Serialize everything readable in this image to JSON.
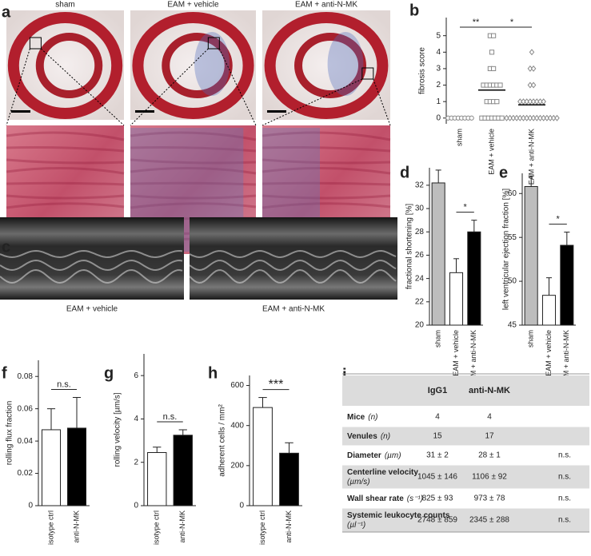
{
  "panel_labels": [
    "a",
    "b",
    "c",
    "d",
    "e",
    "f",
    "g",
    "h",
    "i"
  ],
  "histology": {
    "captions": [
      "sham",
      "EAM + vehicle",
      "EAM + anti-N-MK"
    ]
  },
  "echo": {
    "captions": [
      "EAM + vehicle",
      "EAM + anti-N-MK"
    ]
  },
  "chart_data": [
    {
      "type": "dotplot",
      "ylabel": "fibrosis score",
      "categories": [
        "sham",
        "EAM + vehicle",
        "EAM + anti-N-MK"
      ],
      "markers": [
        "circle",
        "square",
        "diamond"
      ],
      "color": "#888888",
      "groups": [
        [
          0,
          0,
          0,
          0,
          0,
          0,
          0,
          0
        ],
        [
          5,
          5,
          4,
          3,
          3,
          2,
          2,
          2,
          2,
          2,
          2,
          1,
          1,
          1,
          1,
          0,
          0,
          0,
          0,
          0,
          0,
          0
        ],
        [
          4,
          3,
          3,
          2,
          2,
          1,
          1,
          1,
          1,
          1,
          1,
          1,
          1,
          0,
          0,
          0,
          0,
          0,
          0,
          0,
          0,
          0,
          0,
          0,
          0,
          0,
          0,
          0,
          0
        ]
      ],
      "means": [
        null,
        1.7,
        0.8
      ],
      "ylim": [
        -0.35,
        6.1
      ],
      "yticks": [
        0,
        1,
        2,
        3,
        4,
        5
      ],
      "annotations": [
        {
          "text": "**"
        },
        {
          "text": "*"
        }
      ]
    },
    {
      "type": "bar",
      "ylabel": "fractional shortening [%]",
      "categories": [
        "sham",
        "EAM + vehicle",
        "EAM + anti-N-MK"
      ],
      "values": [
        32.2,
        24.5,
        28.0
      ],
      "errors": [
        1.1,
        1.2,
        1.0
      ],
      "colors": [
        "#bdbdbd",
        "#ffffff",
        "#000000"
      ],
      "ylim": [
        20,
        33.5
      ],
      "yticks": [
        20,
        22,
        24,
        26,
        28,
        30,
        32
      ],
      "annotations": [
        {
          "text": "*"
        }
      ]
    },
    {
      "type": "bar",
      "ylabel": "left ventricular ejection fraction [%]",
      "categories": [
        "sham",
        "EAM + vehicle",
        "EAM + anti-N-MK"
      ],
      "values": [
        60.8,
        48.4,
        54.1
      ],
      "errors": [
        1.2,
        2.0,
        1.5
      ],
      "colors": [
        "#bdbdbd",
        "#ffffff",
        "#000000"
      ],
      "ylim": [
        45,
        62.3
      ],
      "yticks": [
        45,
        50,
        55,
        60
      ],
      "annotations": [
        {
          "text": "*"
        }
      ]
    },
    {
      "type": "bar",
      "ylabel": "rolling flux fraction",
      "categories": [
        "isotype ctrl",
        "anti-N-MK"
      ],
      "values": [
        0.047,
        0.048
      ],
      "errors": [
        0.013,
        0.019
      ],
      "colors": [
        "#ffffff",
        "#000000"
      ],
      "ylim": [
        0,
        0.09
      ],
      "yticks": [
        0,
        0.02,
        0.04,
        0.06,
        0.08
      ],
      "annotations": [
        {
          "text": "n.s."
        }
      ]
    },
    {
      "type": "bar",
      "ylabel": "rolling velocity [µm/s]",
      "categories": [
        "isotype ctrl",
        "anti-N-MK"
      ],
      "values": [
        2.45,
        3.25
      ],
      "errors": [
        0.25,
        0.25
      ],
      "colors": [
        "#ffffff",
        "#000000"
      ],
      "ylim": [
        0,
        7
      ],
      "yticks": [
        0,
        2,
        4,
        6
      ],
      "annotations": [
        {
          "text": "n.s."
        }
      ]
    },
    {
      "type": "bar",
      "ylabel": "adherent cells / mm²",
      "categories": [
        "isotype ctrl",
        "anti-N-MK"
      ],
      "values": [
        490,
        262
      ],
      "errors": [
        50,
        52
      ],
      "colors": [
        "#ffffff",
        "#000000"
      ],
      "ylim": [
        0,
        650
      ],
      "yticks": [
        0,
        200,
        400,
        600
      ],
      "annotations": [
        {
          "text": "***"
        }
      ]
    }
  ],
  "table": {
    "columns": [
      "IgG1",
      "anti-N-MK"
    ],
    "rows": [
      {
        "label": "Mice",
        "unit": "(n)",
        "values": [
          "4",
          "4"
        ]
      },
      {
        "label": "Venules",
        "unit": "(n)",
        "values": [
          "15",
          "17"
        ]
      },
      {
        "label": "Diameter",
        "unit": "(µm)",
        "values": [
          "31 ± 2",
          "28 ± 1"
        ],
        "sig": "n.s."
      },
      {
        "label": "Centerline velocity",
        "unit": "(µm/s)",
        "values": [
          "1045 ± 146",
          "1106 ± 92"
        ],
        "sig": "n.s."
      },
      {
        "label": "Wall shear rate",
        "unit": "(s⁻¹)",
        "values": [
          "825 ± 93",
          "973 ± 78"
        ],
        "sig": "n.s."
      },
      {
        "label": "Systemic leukocyte counts",
        "unit": "(µl⁻¹)",
        "values": [
          "2748 ± 859",
          "2345 ± 288"
        ],
        "sig": "n.s."
      }
    ]
  }
}
